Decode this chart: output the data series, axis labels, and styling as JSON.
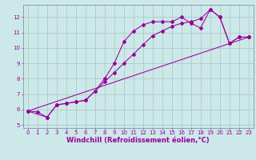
{
  "xlabel": "Windchill (Refroidissement éolien,°C)",
  "bg_color": "#cde8e8",
  "line_color": "#990099",
  "grid_color": "#aacccc",
  "spine_color": "#7799aa",
  "series1_x": [
    0,
    1,
    2,
    3,
    4,
    5,
    6,
    7,
    8,
    9,
    10,
    11,
    12,
    13,
    14,
    15,
    16,
    17,
    18,
    19,
    20,
    21,
    22,
    23
  ],
  "series1_y": [
    5.9,
    5.85,
    5.5,
    6.3,
    6.4,
    6.5,
    6.6,
    7.2,
    8.0,
    9.0,
    10.4,
    11.1,
    11.5,
    11.7,
    11.7,
    11.7,
    12.0,
    11.6,
    11.3,
    12.5,
    12.0,
    10.3,
    10.7,
    10.7
  ],
  "series2_x": [
    0,
    2,
    3,
    4,
    5,
    6,
    7,
    8,
    9,
    10,
    11,
    12,
    13,
    14,
    15,
    16,
    17,
    18,
    19,
    20,
    21,
    22,
    23
  ],
  "series2_y": [
    5.9,
    5.5,
    6.3,
    6.4,
    6.5,
    6.6,
    7.2,
    7.8,
    8.4,
    9.0,
    9.6,
    10.2,
    10.8,
    11.1,
    11.4,
    11.6,
    11.7,
    11.9,
    12.5,
    12.0,
    10.3,
    10.7,
    10.7
  ],
  "series3_x": [
    0,
    23
  ],
  "series3_y": [
    5.9,
    10.7
  ],
  "xlim": [
    -0.5,
    23.5
  ],
  "ylim": [
    4.8,
    12.8
  ],
  "xticks": [
    0,
    1,
    2,
    3,
    4,
    5,
    6,
    7,
    8,
    9,
    10,
    11,
    12,
    13,
    14,
    15,
    16,
    17,
    18,
    19,
    20,
    21,
    22,
    23
  ],
  "yticks": [
    5,
    6,
    7,
    8,
    9,
    10,
    11,
    12
  ],
  "tick_fontsize": 5,
  "xlabel_fontsize": 6
}
